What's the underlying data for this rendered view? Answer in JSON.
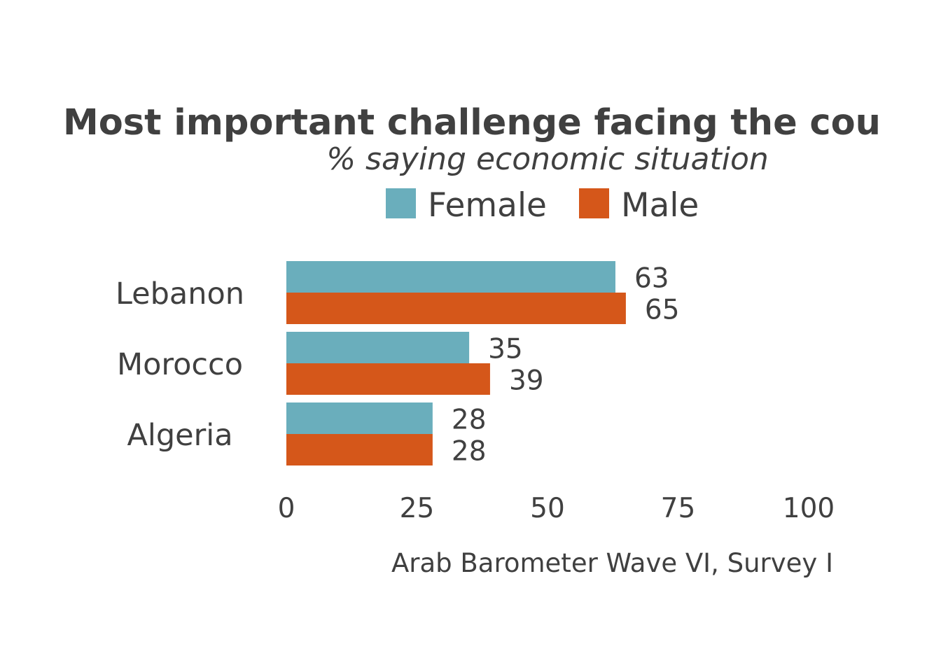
{
  "chart_data": {
    "type": "bar",
    "orientation": "horizontal",
    "title": "Most important challenge facing the cou",
    "subtitle": "% saying economic situation",
    "caption": "Arab Barometer Wave VI, Survey I",
    "categories": [
      "Lebanon",
      "Morocco",
      "Algeria"
    ],
    "series": [
      {
        "name": "Female",
        "color": "#6aaebc",
        "values": [
          63,
          35,
          28
        ]
      },
      {
        "name": "Male",
        "color": "#d5571a",
        "values": [
          65,
          39,
          28
        ]
      }
    ],
    "xlim": [
      0,
      100
    ],
    "xticks": [
      "0",
      "25",
      "50",
      "75",
      "100"
    ],
    "legend_position": "top",
    "grid": false
  }
}
